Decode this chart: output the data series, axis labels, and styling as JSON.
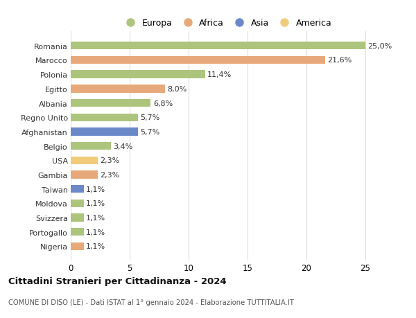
{
  "countries": [
    "Romania",
    "Marocco",
    "Polonia",
    "Egitto",
    "Albania",
    "Regno Unito",
    "Afghanistan",
    "Belgio",
    "USA",
    "Gambia",
    "Taiwan",
    "Moldova",
    "Svizzera",
    "Portogallo",
    "Nigeria"
  ],
  "values": [
    25.0,
    21.6,
    11.4,
    8.0,
    6.8,
    5.7,
    5.7,
    3.4,
    2.3,
    2.3,
    1.1,
    1.1,
    1.1,
    1.1,
    1.1
  ],
  "labels": [
    "25,0%",
    "21,6%",
    "11,4%",
    "8,0%",
    "6,8%",
    "5,7%",
    "5,7%",
    "3,4%",
    "2,3%",
    "2,3%",
    "1,1%",
    "1,1%",
    "1,1%",
    "1,1%",
    "1,1%"
  ],
  "continents": [
    "Europa",
    "Africa",
    "Europa",
    "Africa",
    "Europa",
    "Europa",
    "Asia",
    "Europa",
    "America",
    "Africa",
    "Asia",
    "Europa",
    "Europa",
    "Europa",
    "Africa"
  ],
  "colors": {
    "Europa": "#adc47d",
    "Africa": "#e8a97a",
    "Asia": "#6b88c9",
    "America": "#f0cc7a"
  },
  "title": "Cittadini Stranieri per Cittadinanza - 2024",
  "subtitle": "COMUNE DI DISO (LE) - Dati ISTAT al 1° gennaio 2024 - Elaborazione TUTTITALIA.IT",
  "xlim": [
    0,
    26.5
  ],
  "xticks": [
    0,
    5,
    10,
    15,
    20,
    25
  ],
  "background_color": "#ffffff",
  "grid_color": "#dddddd",
  "legend_order": [
    "Europa",
    "Africa",
    "Asia",
    "America"
  ]
}
